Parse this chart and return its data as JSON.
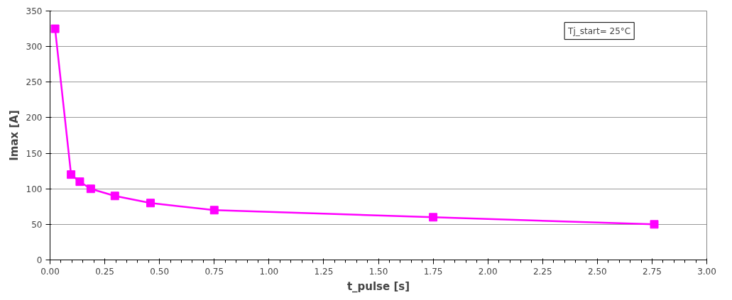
{
  "chart_data": {
    "type": "line",
    "xlabel": "t_pulse [s]",
    "ylabel": "Imax [A]",
    "annotations": [
      "Tj_start= 25°C"
    ],
    "x": [
      0.023,
      0.096,
      0.136,
      0.186,
      0.296,
      0.459,
      0.75,
      1.75,
      2.76
    ],
    "series": [
      {
        "color": "#ff00ff",
        "values": [
          325,
          120,
          110,
          100,
          90,
          80,
          70,
          60,
          50
        ]
      }
    ],
    "xlim": [
      0,
      3
    ],
    "xticks": [
      {
        "value": 0,
        "label": "0.00"
      },
      0.25,
      {
        "value": 0.5,
        "label": "0.50"
      },
      0.75,
      {
        "value": 1,
        "label": "1.00"
      },
      1.25,
      {
        "value": 1.5,
        "label": "1.50"
      },
      1.75,
      {
        "value": 2,
        "label": "2.00"
      },
      2.25,
      {
        "value": 2.5,
        "label": "2.50"
      },
      2.75,
      {
        "value": 3,
        "label": "3.00"
      }
    ],
    "ylim": [
      0,
      350
    ],
    "yticks": [
      0,
      50,
      100,
      150,
      200,
      250,
      300,
      350
    ],
    "grid": "y",
    "marker": "square",
    "line_style": "solid"
  }
}
